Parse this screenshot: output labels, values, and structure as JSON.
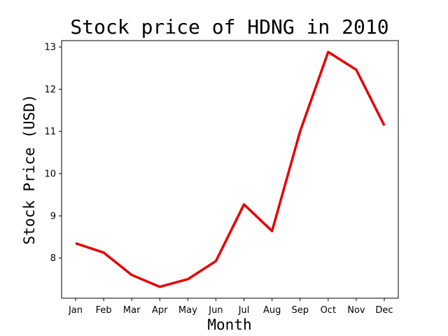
{
  "chart_data": {
    "type": "line",
    "title": "Stock price of HDNG in 2010",
    "xlabel": "Month",
    "ylabel": "Stock Price (USD)",
    "categories": [
      "Jan",
      "Feb",
      "Mar",
      "Apr",
      "May",
      "Jun",
      "Jul",
      "Aug",
      "Sep",
      "Oct",
      "Nov",
      "Dec"
    ],
    "series": [
      {
        "values": [
          8.35,
          8.13,
          7.6,
          7.32,
          7.5,
          7.93,
          9.27,
          8.64,
          11.0,
          12.88,
          12.46,
          11.14
        ],
        "color": "#e50000"
      }
    ],
    "yticks": [
      8,
      9,
      10,
      11,
      12,
      13
    ],
    "ylim": [
      7.05,
      13.15
    ],
    "grid": false,
    "legend": "none"
  }
}
